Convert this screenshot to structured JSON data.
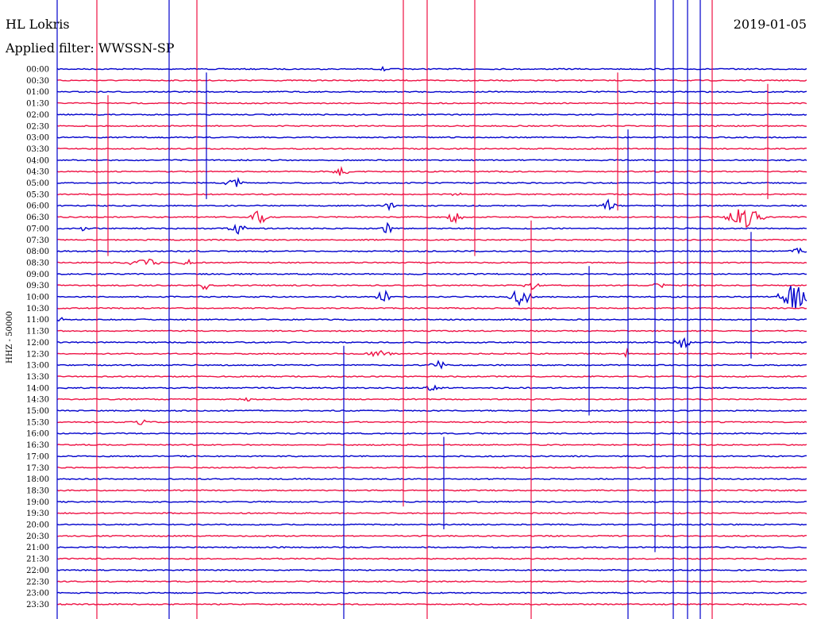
{
  "header": {
    "station": "HL Lokris",
    "filter": "Applied filter: WWSSN-SP",
    "date": "2019-01-05"
  },
  "chart_data": {
    "type": "line",
    "title": "HL Lokris",
    "subtitle": "Applied filter: WWSSN-SP",
    "ylabel": "HHZ - 50000",
    "row_labels": [
      "00:00",
      "00:30",
      "01:00",
      "01:30",
      "02:00",
      "02:30",
      "03:00",
      "03:30",
      "04:00",
      "04:30",
      "05:00",
      "05:30",
      "06:00",
      "06:30",
      "07:00",
      "07:30",
      "08:00",
      "08:30",
      "09:00",
      "09:30",
      "10:00",
      "10:30",
      "11:00",
      "11:30",
      "12:00",
      "12:30",
      "13:00",
      "13:30",
      "14:00",
      "14:30",
      "15:00",
      "15:30",
      "16:00",
      "16:30",
      "17:00",
      "17:30",
      "18:00",
      "18:30",
      "19:00",
      "19:30",
      "20:00",
      "20:30",
      "21:00",
      "21:30",
      "22:00",
      "22:30",
      "23:00",
      "23:30"
    ],
    "colors": {
      "even_rows": "#0000cc",
      "odd_rows": "#ee1144"
    },
    "grid": false
  }
}
